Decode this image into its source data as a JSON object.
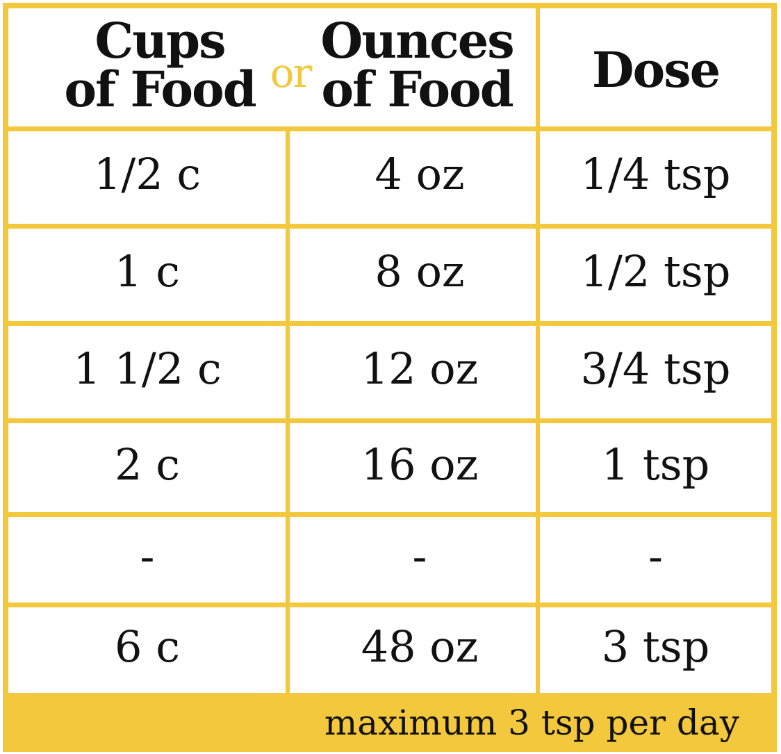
{
  "header": {
    "cups": [
      "Cups",
      "of Food"
    ],
    "or": "or",
    "ounces": [
      "Ounces",
      "of Food"
    ],
    "dose": "Dose"
  },
  "table": {
    "rows": [
      [
        "1/2 c",
        "4 oz",
        "1/4 tsp"
      ],
      [
        "1 c",
        "8 oz",
        "1/2 tsp"
      ],
      [
        "1 1/2 c",
        "12 oz",
        "3/4 tsp"
      ],
      [
        "2 c",
        "16 oz",
        "1 tsp"
      ],
      [
        "-",
        "-",
        "-"
      ],
      [
        "6 c",
        "48 oz",
        "3 tsp"
      ]
    ]
  },
  "footer": "maximum 3 tsp per day"
}
